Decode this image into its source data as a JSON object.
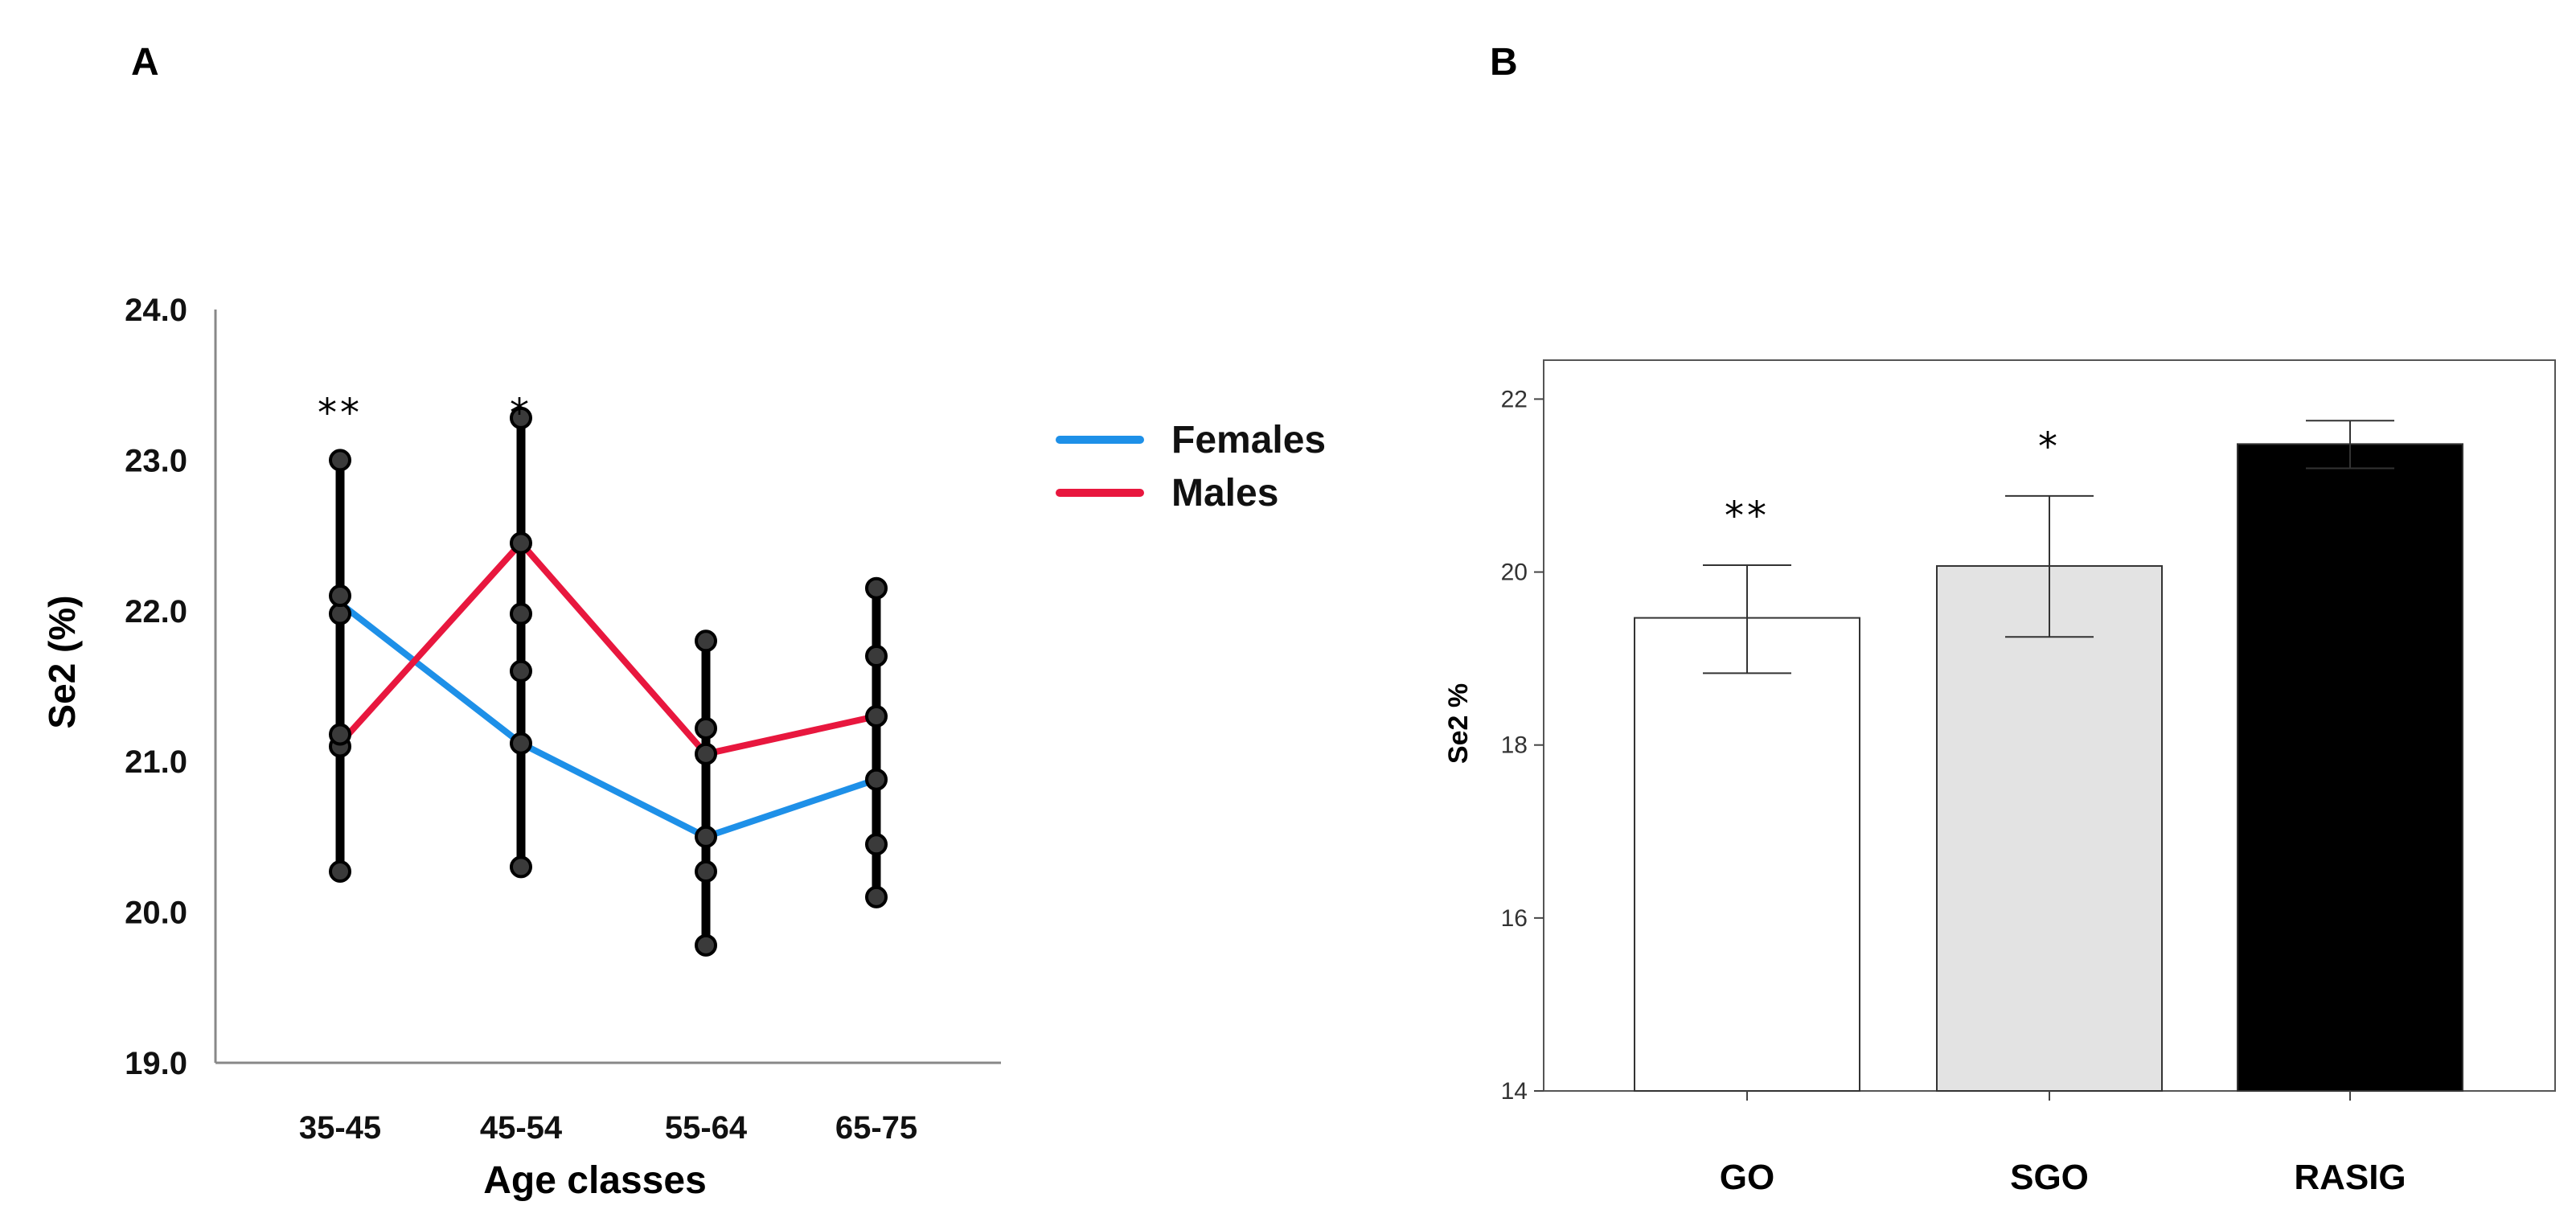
{
  "chart_data": [
    {
      "panel": "A",
      "type": "line",
      "xlabel": "Age classes",
      "ylabel": "Se2 (%)",
      "categories": [
        "35-45",
        "45-54",
        "55-64",
        "65-75"
      ],
      "ylim": [
        19.0,
        24.0
      ],
      "yticks": [
        "19.0",
        "20.0",
        "21.0",
        "22.0",
        "23.0",
        "24.0"
      ],
      "series": [
        {
          "name": "Females",
          "color": "#1E90E8",
          "values": [
            22.05,
            21.12,
            20.5,
            20.88
          ]
        },
        {
          "name": "Males",
          "color": "#E8173E",
          "values": [
            21.12,
            22.45,
            21.05,
            21.3
          ]
        }
      ],
      "error_bars": [
        {
          "low": 20.27,
          "high": 23.0,
          "markers": [
            20.27,
            21.1,
            21.18,
            21.98,
            22.1,
            23.0
          ]
        },
        {
          "low": 20.3,
          "high": 23.28,
          "markers": [
            20.3,
            21.12,
            21.6,
            21.98,
            22.45,
            23.28
          ]
        },
        {
          "low": 19.78,
          "high": 21.8,
          "markers": [
            19.78,
            20.27,
            20.5,
            21.05,
            21.22,
            21.8
          ]
        },
        {
          "low": 20.1,
          "high": 22.15,
          "markers": [
            20.1,
            20.45,
            20.88,
            21.3,
            21.7,
            22.15
          ]
        }
      ],
      "annotations": [
        {
          "category": "35-45",
          "text": "**"
        },
        {
          "category": "45-54",
          "text": "*"
        }
      ]
    },
    {
      "panel": "B",
      "type": "bar",
      "xlabel": "",
      "ylabel": "Se2 %",
      "categories": [
        "GO",
        "SGO",
        "RASIG"
      ],
      "values": [
        19.47,
        20.07,
        21.48
      ],
      "errors_low": [
        18.83,
        19.25,
        21.2
      ],
      "errors_high": [
        20.08,
        20.88,
        21.75
      ],
      "bar_colors": [
        "#FFFFFF",
        "#E3E3E3",
        "#000000"
      ],
      "ylim": [
        14,
        22.45
      ],
      "yticks": [
        "14",
        "16",
        "18",
        "20",
        "22"
      ],
      "annotations": [
        {
          "category": "GO",
          "text": "**"
        },
        {
          "category": "SGO",
          "text": "*"
        }
      ]
    }
  ],
  "labels": {
    "panel_a": "A",
    "panel_b": "B"
  }
}
